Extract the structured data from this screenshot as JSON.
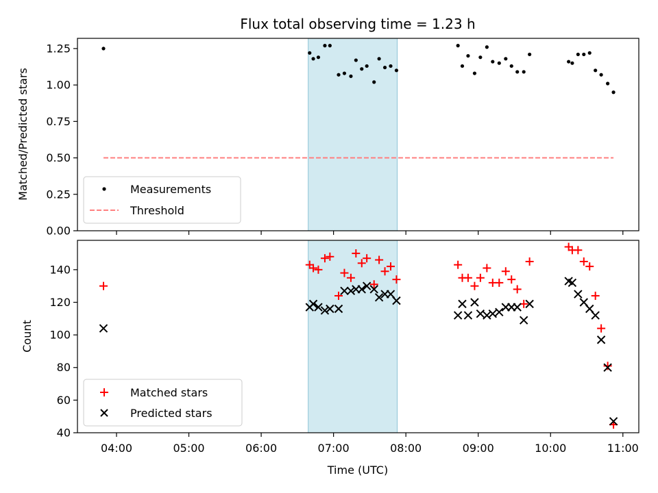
{
  "chart_data": {
    "title": "Flux total observing time = 1.23 h",
    "xlabel": "Time (UTC)",
    "x_ticks": [
      "04:00",
      "05:00",
      "06:00",
      "07:00",
      "08:00",
      "09:00",
      "10:00",
      "11:00"
    ],
    "x_tick_hours": [
      4,
      5,
      6,
      7,
      8,
      9,
      10,
      11
    ],
    "xlim_hours": [
      3.46,
      11.22
    ],
    "shaded_span_hours": [
      6.65,
      7.88
    ],
    "shade_color": "#add8e6",
    "panels": [
      {
        "id": "ratio",
        "type": "scatter",
        "ylabel": "Matched/Predicted stars",
        "ylim": [
          0,
          1.32
        ],
        "y_ticks": [
          0.0,
          0.25,
          0.5,
          0.75,
          1.0,
          1.25
        ],
        "y_tick_labels": [
          "0.00",
          "0.25",
          "0.50",
          "0.75",
          "1.00",
          "1.25"
        ],
        "legend_position": "lower-left",
        "series": [
          {
            "name": "Measurements",
            "marker": "dot",
            "color": "#000000",
            "points": [
              [
                3.82,
                1.25
              ],
              [
                6.67,
                1.22
              ],
              [
                6.72,
                1.18
              ],
              [
                6.79,
                1.19
              ],
              [
                6.88,
                1.27
              ],
              [
                6.95,
                1.27
              ],
              [
                7.07,
                1.07
              ],
              [
                7.15,
                1.08
              ],
              [
                7.24,
                1.06
              ],
              [
                7.31,
                1.17
              ],
              [
                7.39,
                1.11
              ],
              [
                7.46,
                1.13
              ],
              [
                7.56,
                1.02
              ],
              [
                7.63,
                1.18
              ],
              [
                7.71,
                1.12
              ],
              [
                7.79,
                1.13
              ],
              [
                7.87,
                1.1
              ],
              [
                8.72,
                1.27
              ],
              [
                8.78,
                1.13
              ],
              [
                8.86,
                1.2
              ],
              [
                8.95,
                1.08
              ],
              [
                9.03,
                1.19
              ],
              [
                9.12,
                1.26
              ],
              [
                9.2,
                1.16
              ],
              [
                9.29,
                1.15
              ],
              [
                9.38,
                1.18
              ],
              [
                9.46,
                1.13
              ],
              [
                9.54,
                1.09
              ],
              [
                9.63,
                1.09
              ],
              [
                9.71,
                1.21
              ],
              [
                10.25,
                1.16
              ],
              [
                10.3,
                1.15
              ],
              [
                10.38,
                1.21
              ],
              [
                10.46,
                1.21
              ],
              [
                10.54,
                1.22
              ],
              [
                10.62,
                1.1
              ],
              [
                10.7,
                1.07
              ],
              [
                10.79,
                1.01
              ],
              [
                10.87,
                0.95
              ]
            ]
          },
          {
            "name": "Threshold",
            "style": "dashed",
            "color": "#ff7f7f",
            "points": [
              [
                3.82,
                0.5
              ],
              [
                10.87,
                0.5
              ]
            ]
          }
        ]
      },
      {
        "id": "counts",
        "type": "scatter",
        "ylabel": "Count",
        "ylim": [
          40,
          158
        ],
        "y_ticks": [
          40,
          60,
          80,
          100,
          120,
          140
        ],
        "y_tick_labels": [
          "40",
          "60",
          "80",
          "100",
          "120",
          "140"
        ],
        "legend_position": "lower-left",
        "series": [
          {
            "name": "Matched stars",
            "marker": "plus",
            "color": "#ff0000",
            "points": [
              [
                3.82,
                130
              ],
              [
                6.67,
                143
              ],
              [
                6.72,
                141
              ],
              [
                6.79,
                140
              ],
              [
                6.88,
                147
              ],
              [
                6.95,
                148
              ],
              [
                7.07,
                124
              ],
              [
                7.15,
                138
              ],
              [
                7.24,
                135
              ],
              [
                7.31,
                150
              ],
              [
                7.39,
                144
              ],
              [
                7.46,
                147
              ],
              [
                7.56,
                131
              ],
              [
                7.63,
                146
              ],
              [
                7.71,
                139
              ],
              [
                7.79,
                142
              ],
              [
                7.87,
                134
              ],
              [
                8.72,
                143
              ],
              [
                8.78,
                135
              ],
              [
                8.86,
                135
              ],
              [
                8.95,
                130
              ],
              [
                9.03,
                135
              ],
              [
                9.12,
                141
              ],
              [
                9.2,
                132
              ],
              [
                9.29,
                132
              ],
              [
                9.38,
                139
              ],
              [
                9.46,
                134
              ],
              [
                9.54,
                128
              ],
              [
                9.63,
                119
              ],
              [
                9.71,
                145
              ],
              [
                10.25,
                154
              ],
              [
                10.3,
                152
              ],
              [
                10.38,
                152
              ],
              [
                10.46,
                145
              ],
              [
                10.54,
                142
              ],
              [
                10.62,
                124
              ],
              [
                10.7,
                104
              ],
              [
                10.79,
                81
              ],
              [
                10.87,
                45
              ]
            ]
          },
          {
            "name": "Predicted stars",
            "marker": "x",
            "color": "#000000",
            "points": [
              [
                3.82,
                104
              ],
              [
                6.67,
                117
              ],
              [
                6.72,
                119
              ],
              [
                6.79,
                117
              ],
              [
                6.88,
                115
              ],
              [
                6.95,
                116
              ],
              [
                7.07,
                116
              ],
              [
                7.15,
                127
              ],
              [
                7.24,
                127
              ],
              [
                7.31,
                128
              ],
              [
                7.39,
                128
              ],
              [
                7.46,
                130
              ],
              [
                7.56,
                128
              ],
              [
                7.63,
                123
              ],
              [
                7.71,
                125
              ],
              [
                7.79,
                125
              ],
              [
                7.87,
                121
              ],
              [
                8.72,
                112
              ],
              [
                8.78,
                119
              ],
              [
                8.86,
                112
              ],
              [
                8.95,
                120
              ],
              [
                9.03,
                113
              ],
              [
                9.12,
                112
              ],
              [
                9.2,
                113
              ],
              [
                9.29,
                114
              ],
              [
                9.38,
                117
              ],
              [
                9.46,
                117
              ],
              [
                9.54,
                117
              ],
              [
                9.63,
                109
              ],
              [
                9.71,
                119
              ],
              [
                10.25,
                133
              ],
              [
                10.3,
                132
              ],
              [
                10.38,
                125
              ],
              [
                10.46,
                120
              ],
              [
                10.54,
                116
              ],
              [
                10.62,
                112
              ],
              [
                10.7,
                97
              ],
              [
                10.79,
                80
              ],
              [
                10.87,
                47
              ]
            ]
          }
        ]
      }
    ]
  }
}
